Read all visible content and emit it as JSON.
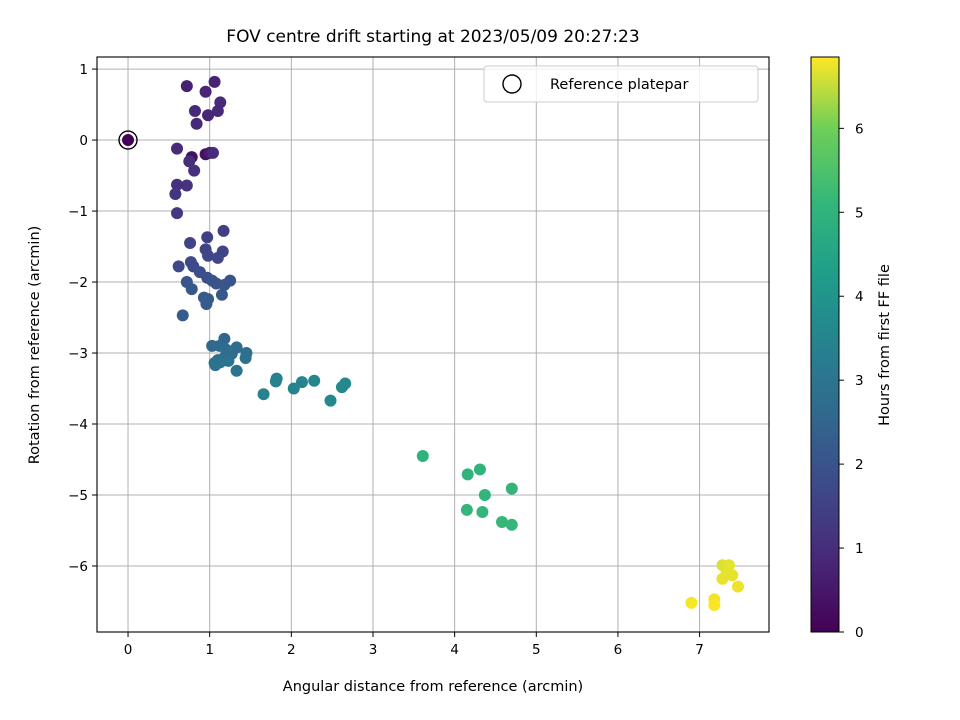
{
  "chart_data": {
    "type": "scatter",
    "title": "FOV centre drift starting at 2023/05/09 20:27:23",
    "xlabel": "Angular distance from reference (arcmin)",
    "ylabel": "Rotation from reference (arcmin)",
    "xlim": [
      -0.38,
      7.85
    ],
    "ylim": [
      -6.93,
      1.17
    ],
    "xticks": [
      0,
      1,
      2,
      3,
      4,
      5,
      6,
      7
    ],
    "yticks": [
      1,
      0,
      -1,
      -2,
      -3,
      -4,
      -5,
      -6
    ],
    "grid": true,
    "legend": {
      "placement": "top-right",
      "entries": [
        "Reference platepar"
      ]
    },
    "colorbar": {
      "label": "Hours from first FF file",
      "range": [
        0,
        6.85
      ],
      "ticks": [
        0,
        1,
        2,
        3,
        4,
        5,
        6
      ],
      "colormap": "viridis"
    },
    "reference_point": {
      "x": 0,
      "y": 0,
      "marker": "open-circle"
    },
    "points": [
      [
        0.0,
        0.0,
        0.05
      ],
      [
        0.72,
        0.76,
        0.7
      ],
      [
        1.06,
        0.82,
        0.75
      ],
      [
        0.95,
        0.68,
        0.8
      ],
      [
        0.82,
        0.41,
        0.85
      ],
      [
        1.13,
        0.53,
        0.9
      ],
      [
        0.98,
        0.35,
        0.8
      ],
      [
        1.1,
        0.41,
        0.88
      ],
      [
        0.84,
        0.23,
        0.92
      ],
      [
        0.78,
        -0.24,
        0.3
      ],
      [
        0.95,
        -0.2,
        0.35
      ],
      [
        1.0,
        -0.18,
        0.6
      ],
      [
        1.04,
        -0.18,
        0.9
      ],
      [
        0.6,
        -0.12,
        0.95
      ],
      [
        0.75,
        -0.3,
        1.0
      ],
      [
        0.81,
        -0.43,
        1.05
      ],
      [
        0.6,
        -0.63,
        1.1
      ],
      [
        0.72,
        -0.64,
        1.15
      ],
      [
        0.58,
        -0.76,
        1.2
      ],
      [
        0.6,
        -1.03,
        1.3
      ],
      [
        1.17,
        -1.28,
        1.45
      ],
      [
        0.97,
        -1.37,
        1.5
      ],
      [
        0.76,
        -1.45,
        1.55
      ],
      [
        0.95,
        -1.54,
        1.55
      ],
      [
        1.16,
        -1.57,
        1.6
      ],
      [
        0.98,
        -1.63,
        1.6
      ],
      [
        1.1,
        -1.66,
        1.65
      ],
      [
        0.62,
        -1.78,
        1.7
      ],
      [
        0.77,
        -1.72,
        1.7
      ],
      [
        0.8,
        -1.78,
        1.75
      ],
      [
        0.88,
        -1.86,
        1.8
      ],
      [
        0.97,
        -1.94,
        1.9
      ],
      [
        1.03,
        -1.98,
        1.95
      ],
      [
        1.08,
        -2.02,
        2.0
      ],
      [
        1.25,
        -1.98,
        2.0
      ],
      [
        0.72,
        -2.0,
        2.05
      ],
      [
        1.18,
        -2.04,
        2.05
      ],
      [
        0.78,
        -2.1,
        2.1
      ],
      [
        1.15,
        -2.18,
        2.1
      ],
      [
        0.93,
        -2.22,
        2.15
      ],
      [
        0.98,
        -2.24,
        2.15
      ],
      [
        0.96,
        -2.31,
        2.2
      ],
      [
        0.67,
        -2.47,
        2.25
      ],
      [
        1.18,
        -2.8,
        2.55
      ],
      [
        1.03,
        -2.9,
        2.6
      ],
      [
        1.12,
        -2.9,
        2.65
      ],
      [
        1.2,
        -2.95,
        2.7
      ],
      [
        1.33,
        -2.92,
        2.7
      ],
      [
        1.27,
        -3.01,
        2.75
      ],
      [
        1.45,
        -3.0,
        2.75
      ],
      [
        1.19,
        -3.05,
        2.8
      ],
      [
        1.1,
        -3.1,
        2.8
      ],
      [
        1.44,
        -3.07,
        2.85
      ],
      [
        1.06,
        -3.14,
        2.85
      ],
      [
        1.23,
        -3.11,
        2.9
      ],
      [
        1.13,
        -3.13,
        2.9
      ],
      [
        1.07,
        -3.17,
        2.9
      ],
      [
        1.33,
        -3.25,
        2.95
      ],
      [
        1.82,
        -3.36,
        3.4
      ],
      [
        1.81,
        -3.4,
        3.45
      ],
      [
        2.13,
        -3.41,
        3.5
      ],
      [
        2.28,
        -3.39,
        3.55
      ],
      [
        2.03,
        -3.5,
        3.5
      ],
      [
        1.66,
        -3.58,
        3.45
      ],
      [
        2.66,
        -3.43,
        3.6
      ],
      [
        2.62,
        -3.48,
        3.6
      ],
      [
        2.48,
        -3.67,
        3.6
      ],
      [
        3.61,
        -4.45,
        4.95
      ],
      [
        4.31,
        -4.64,
        5.0
      ],
      [
        4.16,
        -4.71,
        5.0
      ],
      [
        4.7,
        -4.91,
        5.05
      ],
      [
        4.37,
        -5.0,
        5.05
      ],
      [
        4.15,
        -5.21,
        5.1
      ],
      [
        4.34,
        -5.24,
        5.1
      ],
      [
        4.58,
        -5.38,
        5.15
      ],
      [
        4.7,
        -5.42,
        5.15
      ],
      [
        7.28,
        -5.99,
        6.65
      ],
      [
        7.36,
        -5.99,
        6.7
      ],
      [
        7.33,
        -6.11,
        6.7
      ],
      [
        7.4,
        -6.13,
        6.72
      ],
      [
        7.28,
        -6.18,
        6.72
      ],
      [
        7.47,
        -6.29,
        6.75
      ],
      [
        7.18,
        -6.47,
        6.78
      ],
      [
        6.9,
        -6.52,
        6.8
      ],
      [
        7.18,
        -6.55,
        6.82
      ]
    ]
  }
}
